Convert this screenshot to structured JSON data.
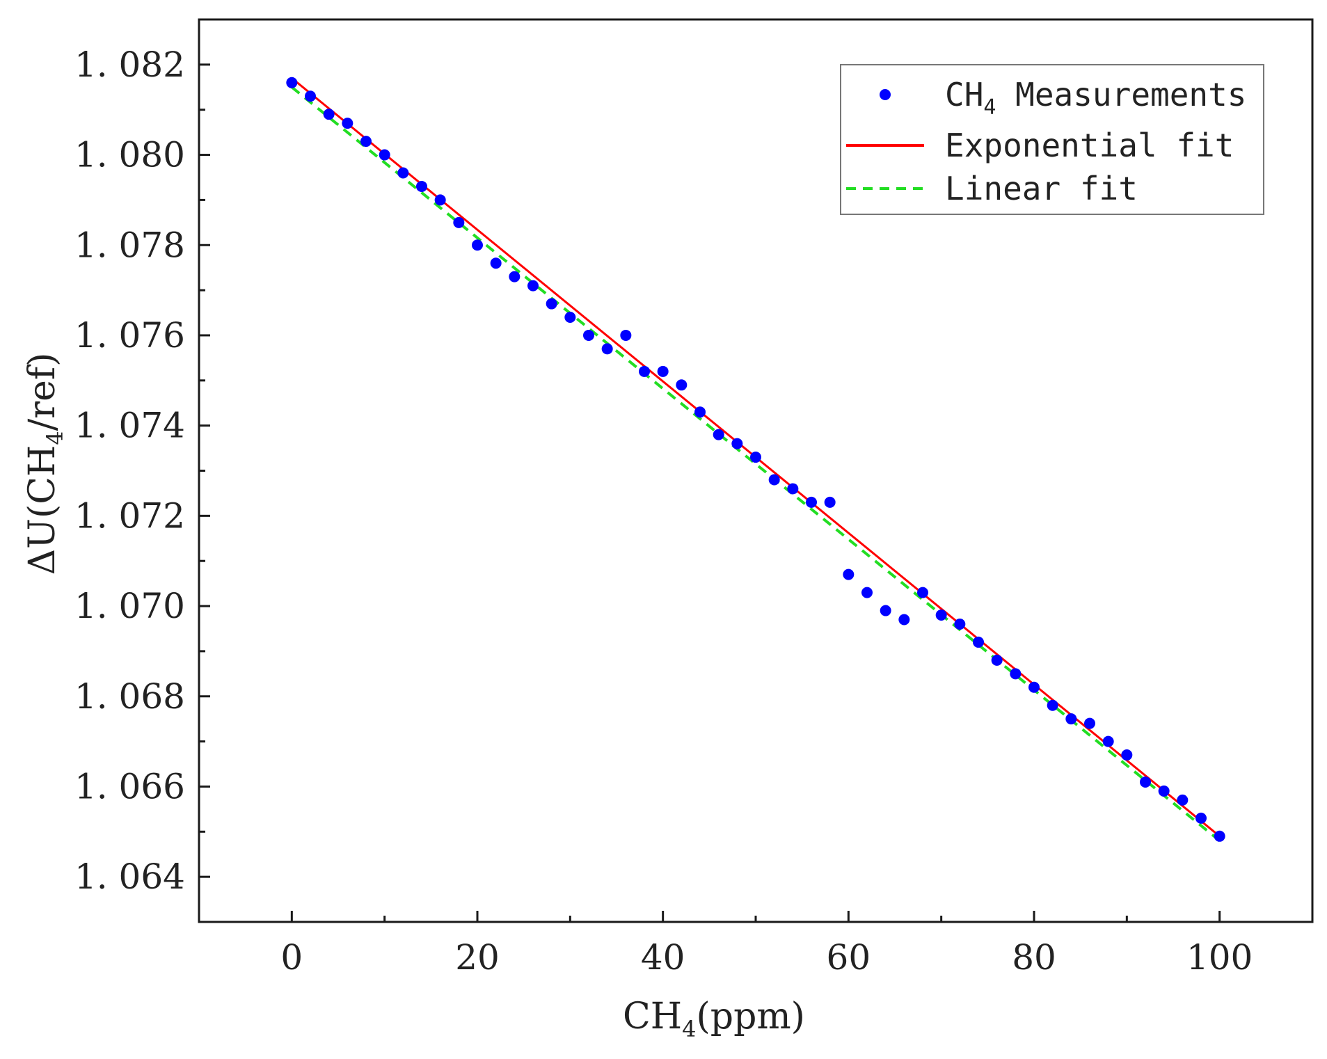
{
  "chart_data": {
    "type": "scatter",
    "title": "",
    "xlabel": "CH",
    "xlabel_sub": "4",
    "xlabel_tail": "(ppm)",
    "ylabel": "ΔU(CH",
    "ylabel_sub": "4",
    "ylabel_tail": "/ref)",
    "xlim": [
      -10,
      110
    ],
    "ylim": [
      1.063,
      1.083
    ],
    "x_ticks": [
      0,
      20,
      40,
      60,
      80,
      100
    ],
    "x_ticks_minor": [
      10,
      30,
      50,
      70,
      90
    ],
    "y_ticks": [
      1.064,
      1.066,
      1.068,
      1.07,
      1.072,
      1.074,
      1.076,
      1.078,
      1.08,
      1.082
    ],
    "x_tick_labels": [
      "0",
      "20",
      "40",
      "60",
      "80",
      "100"
    ],
    "y_tick_labels": [
      "1. 064",
      "1. 066",
      "1. 068",
      "1. 070",
      "1. 072",
      "1. 074",
      "1. 076",
      "1. 078",
      "1. 080",
      "1. 082"
    ],
    "grid": false,
    "legend_position": "top-right",
    "series": [
      {
        "name": "CH4 Measurements",
        "legend_label": "CH",
        "legend_sub": "4",
        "legend_tail": " Measurements",
        "kind": "scatter",
        "color": "#0000ff",
        "x": [
          0,
          2,
          4,
          6,
          8,
          10,
          12,
          14,
          16,
          18,
          20,
          22,
          24,
          26,
          28,
          30,
          32,
          34,
          36,
          38,
          40,
          42,
          44,
          46,
          48,
          50,
          52,
          54,
          56,
          58,
          60,
          62,
          64,
          66,
          68,
          70,
          72,
          74,
          76,
          78,
          80,
          82,
          84,
          86,
          88,
          90,
          92,
          94,
          96,
          98,
          100
        ],
        "y": [
          1.0816,
          1.0813,
          1.0809,
          1.0807,
          1.0803,
          1.08,
          1.0796,
          1.0793,
          1.079,
          1.0785,
          1.078,
          1.0776,
          1.0773,
          1.0771,
          1.0767,
          1.0764,
          1.076,
          1.0757,
          1.076,
          1.0752,
          1.0752,
          1.0749,
          1.0743,
          1.0738,
          1.0736,
          1.0733,
          1.0728,
          1.0726,
          1.0723,
          1.0723,
          1.0707,
          1.0703,
          1.0699,
          1.0697,
          1.0703,
          1.0698,
          1.0696,
          1.0692,
          1.0688,
          1.0685,
          1.0682,
          1.0678,
          1.0675,
          1.0674,
          1.067,
          1.0667,
          1.0661,
          1.0659,
          1.0657,
          1.0653,
          1.0649
        ]
      },
      {
        "name": "Exponential fit",
        "legend_label": "Exponential fit",
        "kind": "line",
        "color": "#ff0000",
        "dash": "solid",
        "x": [
          0,
          100
        ],
        "y": [
          1.0817,
          1.0649
        ]
      },
      {
        "name": "Linear fit",
        "legend_label": "Linear fit",
        "kind": "line",
        "color": "#22dd22",
        "dash": "dashed",
        "x": [
          0,
          100
        ],
        "y": [
          1.0815,
          1.0648
        ]
      }
    ]
  }
}
